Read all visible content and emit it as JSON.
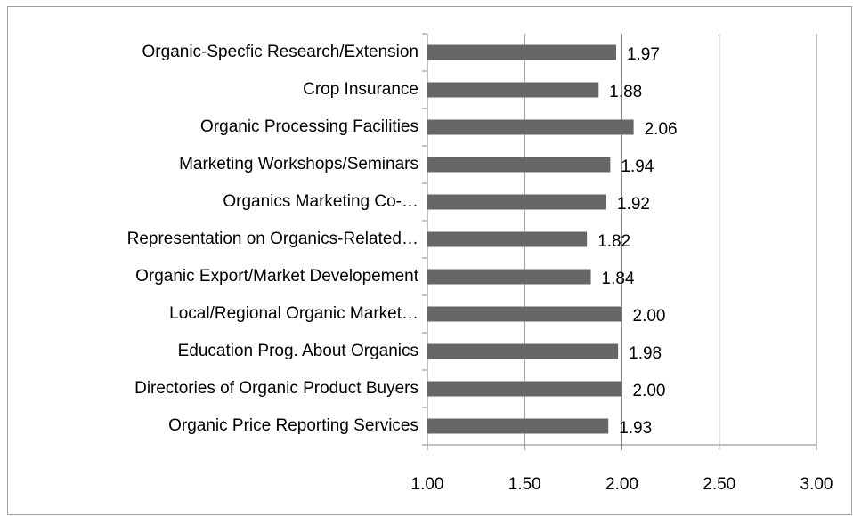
{
  "chart_data": {
    "type": "bar",
    "orientation": "horizontal",
    "categories": [
      "Organic-Specfic Research/Extension",
      "Crop Insurance",
      "Organic Processing Facilities",
      "Marketing Workshops/Seminars",
      "Organics Marketing Co-…",
      "Representation on Organics-Related…",
      "Organic Export/Market Developement",
      "Local/Regional Organic Market…",
      "Education Prog. About Organics",
      "Directories of Organic Product Buyers",
      "Organic Price Reporting Services"
    ],
    "values": [
      1.97,
      1.88,
      2.06,
      1.94,
      1.92,
      1.82,
      1.84,
      2.0,
      1.98,
      2.0,
      1.93
    ],
    "value_labels": [
      "1.97",
      "1.88",
      "2.06",
      "1.94",
      "1.92",
      "1.82",
      "1.84",
      "2.00",
      "1.98",
      "2.00",
      "1.93"
    ],
    "color": "#666666",
    "xlim": [
      1,
      3
    ],
    "xticks": [
      {
        "value": 1,
        "label": "1.00"
      },
      {
        "value": 1.5,
        "label": "1.50"
      },
      {
        "value": 2,
        "label": "2.00"
      },
      {
        "value": 2.5,
        "label": "2.50"
      },
      {
        "value": 3,
        "label": "3.00"
      }
    ],
    "grid": true
  }
}
